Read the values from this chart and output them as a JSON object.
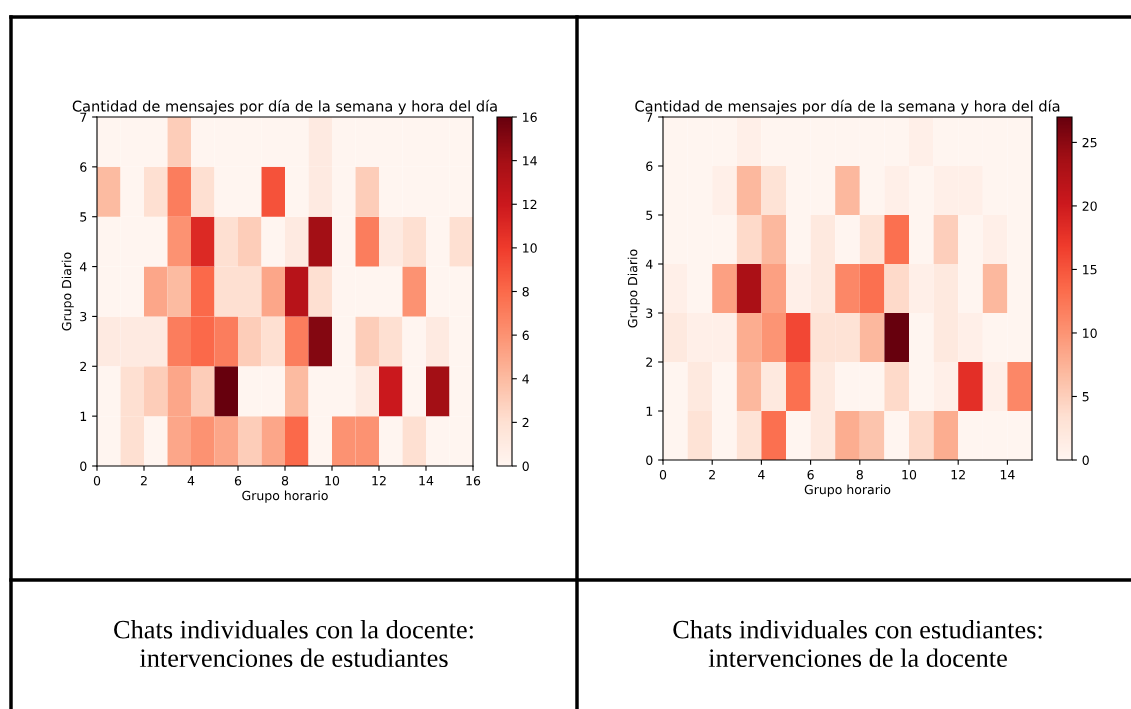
{
  "chart_data": [
    {
      "type": "heatmap",
      "title": "Cantidad de mensajes por día de la semana y hora del día",
      "xlabel": "Grupo horario",
      "ylabel": "Grupo Diario",
      "xlim": [
        0,
        16
      ],
      "xticks": [
        0,
        2,
        4,
        6,
        8,
        10,
        12,
        14,
        16
      ],
      "ylim": [
        0,
        7
      ],
      "yticks": [
        0,
        1,
        2,
        3,
        4,
        5,
        6,
        7
      ],
      "clim": [
        0,
        16
      ],
      "cticks": [
        0,
        2,
        4,
        6,
        8,
        10,
        12,
        14,
        16
      ],
      "cells": [
        [
          0,
          0,
          0,
          3,
          0,
          0,
          0,
          0,
          0,
          1,
          0,
          0,
          0,
          0,
          0,
          0
        ],
        [
          4,
          0,
          2,
          7,
          2,
          0,
          0,
          9,
          0,
          1,
          0,
          3,
          0,
          0,
          0,
          0
        ],
        [
          0,
          0,
          0,
          6,
          11,
          2,
          3,
          0,
          1,
          14,
          0,
          7,
          1,
          2,
          0,
          2
        ],
        [
          0,
          0,
          5,
          4,
          8,
          2,
          2,
          5,
          13,
          2,
          0,
          0,
          0,
          6,
          0,
          0
        ],
        [
          1,
          1,
          1,
          7,
          8,
          7,
          3,
          2,
          7,
          15,
          0,
          3,
          2,
          0,
          1,
          0
        ],
        [
          0,
          2,
          3,
          5,
          3,
          16,
          0,
          0,
          4,
          0,
          0,
          1,
          12,
          0,
          14,
          0
        ],
        [
          0,
          2,
          0,
          5,
          6,
          5,
          3,
          5,
          8,
          0,
          6,
          6,
          0,
          2,
          0,
          0
        ]
      ],
      "annotations": [
        "Chats individuales con la docente:\nintervenciones de estudiantes"
      ]
    },
    {
      "type": "heatmap",
      "title": "Cantidad de mensajes por día de la semana y hora del día",
      "xlabel": "Grupo horario",
      "ylabel": "Grupo Diario",
      "xlim": [
        0,
        15
      ],
      "xticks": [
        0,
        2,
        4,
        6,
        8,
        10,
        12,
        14
      ],
      "ylim": [
        0,
        7
      ],
      "yticks": [
        0,
        1,
        2,
        3,
        4,
        5,
        6,
        7
      ],
      "clim": [
        0,
        27
      ],
      "cticks": [
        0,
        5,
        10,
        15,
        20,
        25
      ],
      "cells": [
        [
          0,
          0,
          0,
          1,
          0,
          0,
          0,
          0,
          0,
          0,
          1,
          0,
          0,
          0,
          0
        ],
        [
          0,
          0,
          1,
          7,
          3,
          0,
          0,
          7,
          0,
          1,
          0,
          1,
          1,
          0,
          0
        ],
        [
          0,
          0,
          0,
          4,
          7,
          0,
          2,
          0,
          3,
          13,
          0,
          5,
          0,
          1,
          0
        ],
        [
          1,
          0,
          9,
          23,
          9,
          1,
          2,
          11,
          13,
          4,
          1,
          2,
          0,
          7,
          0
        ],
        [
          2,
          1,
          1,
          8,
          10,
          16,
          3,
          3,
          7,
          27,
          0,
          2,
          1,
          0,
          0
        ],
        [
          0,
          2,
          0,
          7,
          2,
          13,
          2,
          0,
          0,
          4,
          0,
          1,
          18,
          1,
          11
        ],
        [
          0,
          3,
          0,
          3,
          13,
          0,
          2,
          8,
          6,
          0,
          4,
          8,
          0,
          0,
          0
        ]
      ],
      "annotations": [
        "Chats individuales con estudiantes:\nintervenciones de la docente"
      ]
    }
  ]
}
